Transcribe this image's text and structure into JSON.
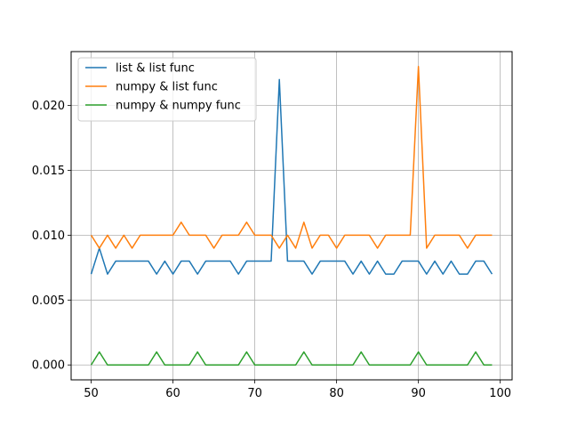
{
  "chart_data": {
    "type": "line",
    "title": "",
    "xlabel": "",
    "ylabel": "",
    "xlim": [
      47.55,
      101.45
    ],
    "ylim": [
      -0.00115,
      0.02415
    ],
    "grid": true,
    "legend_position": "top-left",
    "x_ticks": [
      50,
      60,
      70,
      80,
      90,
      100
    ],
    "x_tick_labels": [
      "50",
      "60",
      "70",
      "80",
      "90",
      "100"
    ],
    "y_ticks": [
      0.0,
      0.005,
      0.01,
      0.015,
      0.02
    ],
    "y_tick_labels": [
      "0.000",
      "0.005",
      "0.010",
      "0.015",
      "0.020"
    ],
    "x": [
      50,
      51,
      52,
      53,
      54,
      55,
      56,
      57,
      58,
      59,
      60,
      61,
      62,
      63,
      64,
      65,
      66,
      67,
      68,
      69,
      70,
      71,
      72,
      73,
      74,
      75,
      76,
      77,
      78,
      79,
      80,
      81,
      82,
      83,
      84,
      85,
      86,
      87,
      88,
      89,
      90,
      91,
      92,
      93,
      94,
      95,
      96,
      97,
      98,
      99
    ],
    "series": [
      {
        "name": "list & list func",
        "color": "#1f77b4",
        "values": [
          0.007,
          0.009,
          0.007,
          0.008,
          0.008,
          0.008,
          0.008,
          0.008,
          0.007,
          0.008,
          0.007,
          0.008,
          0.008,
          0.007,
          0.008,
          0.008,
          0.008,
          0.008,
          0.007,
          0.008,
          0.008,
          0.008,
          0.008,
          0.022,
          0.008,
          0.008,
          0.008,
          0.007,
          0.008,
          0.008,
          0.008,
          0.008,
          0.007,
          0.008,
          0.007,
          0.008,
          0.007,
          0.007,
          0.008,
          0.008,
          0.008,
          0.007,
          0.008,
          0.007,
          0.008,
          0.007,
          0.007,
          0.008,
          0.008,
          0.007
        ]
      },
      {
        "name": "numpy & list func",
        "color": "#ff7f0e",
        "values": [
          0.01,
          0.009,
          0.01,
          0.009,
          0.01,
          0.009,
          0.01,
          0.01,
          0.01,
          0.01,
          0.01,
          0.011,
          0.01,
          0.01,
          0.01,
          0.009,
          0.01,
          0.01,
          0.01,
          0.011,
          0.01,
          0.01,
          0.01,
          0.009,
          0.01,
          0.009,
          0.011,
          0.009,
          0.01,
          0.01,
          0.009,
          0.01,
          0.01,
          0.01,
          0.01,
          0.009,
          0.01,
          0.01,
          0.01,
          0.01,
          0.023,
          0.009,
          0.01,
          0.01,
          0.01,
          0.01,
          0.009,
          0.01,
          0.01,
          0.01
        ]
      },
      {
        "name": "numpy & numpy func",
        "color": "#2ca02c",
        "values": [
          0.0,
          0.001,
          0.0,
          0.0,
          0.0,
          0.0,
          0.0,
          0.0,
          0.001,
          0.0,
          0.0,
          0.0,
          0.0,
          0.001,
          0.0,
          0.0,
          0.0,
          0.0,
          0.0,
          0.001,
          0.0,
          0.0,
          0.0,
          0.0,
          0.0,
          0.0,
          0.001,
          0.0,
          0.0,
          0.0,
          0.0,
          0.0,
          0.0,
          0.001,
          0.0,
          0.0,
          0.0,
          0.0,
          0.0,
          0.0,
          0.001,
          0.0,
          0.0,
          0.0,
          0.0,
          0.0,
          0.0,
          0.001,
          0.0,
          0.0
        ]
      }
    ]
  }
}
